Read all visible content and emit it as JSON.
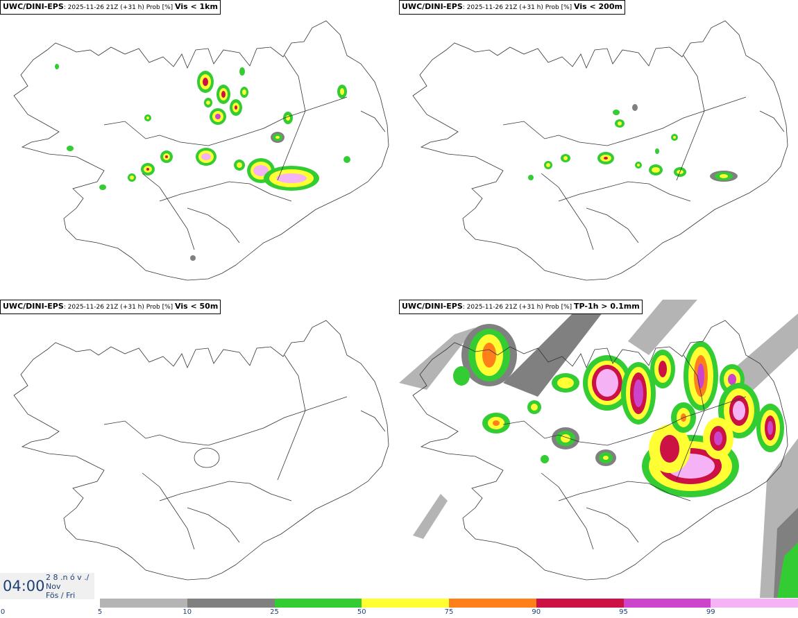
{
  "panels": [
    {
      "source": "UWC/DINI-EPS",
      "meta": ": 2025-11-26 21Z (+31 h) Prob [%] ",
      "variable": "Vis < 1km"
    },
    {
      "source": "UWC/DINI-EPS",
      "meta": ": 2025-11-26 21Z (+31 h) Prob [%] ",
      "variable": "Vis < 200m"
    },
    {
      "source": "UWC/DINI-EPS",
      "meta": ": 2025-11-26 21Z (+31 h) Prob [%] ",
      "variable": "Vis < 50m"
    },
    {
      "source": "UWC/DINI-EPS",
      "meta": ": 2025-11-26 21Z (+31 h) Prob [%] ",
      "variable": "TP-1h > 0.1mm"
    }
  ],
  "time": {
    "clock": "04:00",
    "line1": "2 8 .n ó v ./",
    "line2": "Nov",
    "line3": "Fös / Fri"
  },
  "legend": {
    "ticks": [
      "0",
      "5",
      "10",
      "25",
      "50",
      "75",
      "90",
      "95",
      "99"
    ],
    "colors": [
      "#b4b4b4",
      "#808080",
      "#33cc33",
      "#ffff33",
      "#ff7f1a",
      "#cc1144",
      "#cc44cc",
      "#f5b3f5"
    ]
  }
}
